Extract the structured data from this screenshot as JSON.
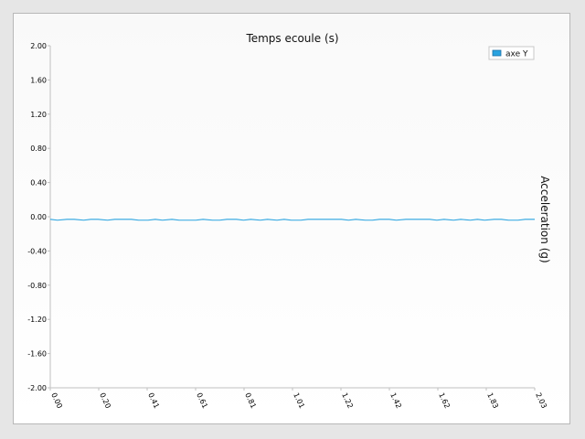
{
  "chart_data": {
    "type": "line",
    "title": "Temps ecoule (s)",
    "xlabel": "",
    "ylabel": "Acceleration (g)",
    "ylim": [
      -2.0,
      2.0
    ],
    "xlim": [
      0.0,
      2.03
    ],
    "y_ticks": [
      "2.00",
      "1.60",
      "1.20",
      "0.80",
      "0.40",
      "0.00",
      "-0.40",
      "-0.80",
      "-1.20",
      "-1.60",
      "-2.00"
    ],
    "x_ticks": [
      "0.00",
      "0.20",
      "0.41",
      "0.61",
      "0.81",
      "1.01",
      "1.22",
      "1.42",
      "1.62",
      "1.83",
      "2.03"
    ],
    "legend_position": "top-right",
    "grid": false,
    "series": [
      {
        "name": "axe Y",
        "color": "#29a3e0",
        "x": [
          0.0,
          0.03,
          0.07,
          0.1,
          0.14,
          0.17,
          0.2,
          0.24,
          0.27,
          0.3,
          0.34,
          0.37,
          0.41,
          0.44,
          0.47,
          0.51,
          0.54,
          0.57,
          0.61,
          0.64,
          0.68,
          0.71,
          0.74,
          0.78,
          0.81,
          0.84,
          0.88,
          0.91,
          0.95,
          0.98,
          1.01,
          1.05,
          1.08,
          1.11,
          1.15,
          1.18,
          1.22,
          1.25,
          1.28,
          1.32,
          1.35,
          1.38,
          1.42,
          1.45,
          1.49,
          1.52,
          1.55,
          1.59,
          1.62,
          1.65,
          1.69,
          1.72,
          1.76,
          1.79,
          1.82,
          1.86,
          1.89,
          1.92,
          1.96,
          1.99,
          2.03
        ],
        "values": [
          -0.03,
          -0.04,
          -0.03,
          -0.03,
          -0.04,
          -0.03,
          -0.03,
          -0.04,
          -0.03,
          -0.03,
          -0.03,
          -0.04,
          -0.04,
          -0.03,
          -0.04,
          -0.03,
          -0.04,
          -0.04,
          -0.04,
          -0.03,
          -0.04,
          -0.04,
          -0.03,
          -0.03,
          -0.04,
          -0.03,
          -0.04,
          -0.03,
          -0.04,
          -0.03,
          -0.04,
          -0.04,
          -0.03,
          -0.03,
          -0.03,
          -0.03,
          -0.03,
          -0.04,
          -0.03,
          -0.04,
          -0.04,
          -0.03,
          -0.03,
          -0.04,
          -0.03,
          -0.03,
          -0.03,
          -0.03,
          -0.04,
          -0.03,
          -0.04,
          -0.03,
          -0.04,
          -0.03,
          -0.04,
          -0.03,
          -0.03,
          -0.04,
          -0.04,
          -0.03,
          -0.03
        ]
      }
    ]
  }
}
